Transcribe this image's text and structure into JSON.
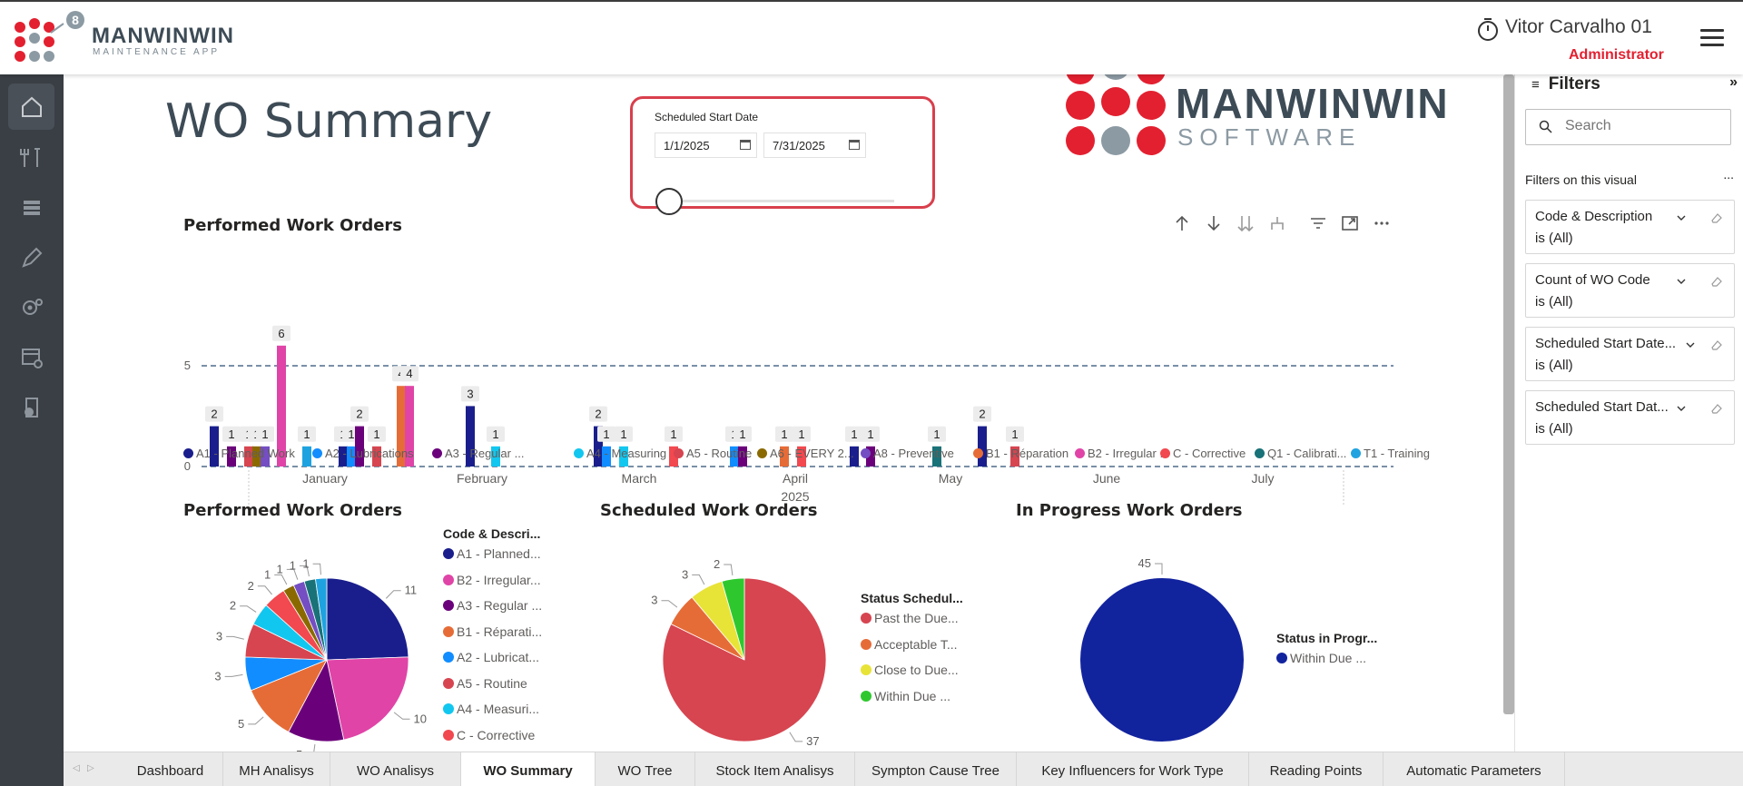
{
  "header": {
    "brand_name": "MANWINWIN",
    "brand_sub": "MAINTENANCE APP",
    "logo_badge": "8",
    "user_name": "Vitor Carvalho 01",
    "user_role": "Administrator"
  },
  "nav": {
    "items": [
      "home-icon",
      "tools-icon",
      "list-icon",
      "pen-icon",
      "settings-icon",
      "config-window-icon",
      "report-icon"
    ]
  },
  "page": {
    "title": "WO Summary"
  },
  "date_filter": {
    "label": "Scheduled Start Date",
    "start": "1/1/2025",
    "end": "7/31/2025"
  },
  "software_logo": {
    "name": "MANWINWIN",
    "sub": "SOFTWARE"
  },
  "bar_visual": {
    "title": "Performed Work Orders",
    "toolbar": [
      "sort-up-icon",
      "sort-down-icon",
      "expand-all-icon",
      "drill-icon",
      "filter-icon",
      "focus-icon",
      "more-icon"
    ]
  },
  "chart_data": [
    {
      "type": "bar",
      "title": "Performed Work Orders",
      "x_axis_title": "2025",
      "categories": [
        "January",
        "February",
        "March",
        "April",
        "May",
        "June",
        "July"
      ],
      "ylim": [
        0,
        6
      ],
      "y_ticks": [
        0,
        5
      ],
      "gridlines": "dashed at 0 and 5",
      "legend_position": "bottom",
      "legend": [
        {
          "label": "A1 - Planned Work",
          "color": "#1a1e8c"
        },
        {
          "label": "A2 - Lubrications",
          "color": "#118dff"
        },
        {
          "label": "A3 - Regular ...",
          "color": "#6b007b"
        },
        {
          "label": "A4 - Measuring",
          "color": "#12c7ef"
        },
        {
          "label": "A5 - Routine",
          "color": "#d64550"
        },
        {
          "label": "A6 - EVERY 2...",
          "color": "#8a6a00"
        },
        {
          "label": "A8 - Preventive",
          "color": "#744ec2"
        },
        {
          "label": "B1 - Réparation",
          "color": "#e66c37"
        },
        {
          "label": "B2 - Irregular ...",
          "color": "#e044a7"
        },
        {
          "label": "C - Corrective",
          "color": "#f2484f"
        },
        {
          "label": "Q1 - Calibrati...",
          "color": "#197278"
        },
        {
          "label": "T1 - Training",
          "color": "#1fa3e0"
        }
      ],
      "bars": [
        {
          "x": 236,
          "value": 2,
          "color": "#1a1e8c"
        },
        {
          "x": 255,
          "value": 1,
          "color": "#6b007b"
        },
        {
          "x": 274,
          "value": 1,
          "color": "#d64550"
        },
        {
          "x": 283,
          "value": 1,
          "color": "#8a6a00"
        },
        {
          "x": 292,
          "value": 1,
          "color": "#744ec2"
        },
        {
          "x": 310,
          "value": 6,
          "color": "#e044a7"
        },
        {
          "x": 338,
          "value": 1,
          "color": "#1fa3e0"
        },
        {
          "x": 378,
          "value": 1,
          "color": "#1a1e8c"
        },
        {
          "x": 387,
          "value": 1,
          "color": "#118dff"
        },
        {
          "x": 396,
          "value": 2,
          "color": "#6b007b"
        },
        {
          "x": 415,
          "value": 1,
          "color": "#d64550"
        },
        {
          "x": 442,
          "value": 4,
          "color": "#e66c37"
        },
        {
          "x": 451,
          "value": 4,
          "color": "#e044a7"
        },
        {
          "x": 518,
          "value": 3,
          "color": "#1a1e8c"
        },
        {
          "x": 546,
          "value": 1,
          "color": "#12c7ef"
        },
        {
          "x": 659,
          "value": 2,
          "color": "#1a1e8c"
        },
        {
          "x": 668,
          "value": 1,
          "color": "#118dff"
        },
        {
          "x": 687,
          "value": 1,
          "color": "#12c7ef"
        },
        {
          "x": 742,
          "value": 1,
          "color": "#f2484f"
        },
        {
          "x": 809,
          "value": 1,
          "color": "#118dff"
        },
        {
          "x": 818,
          "value": 1,
          "color": "#6b007b"
        },
        {
          "x": 864,
          "value": 1,
          "color": "#e66c37"
        },
        {
          "x": 883,
          "value": 1,
          "color": "#f2484f"
        },
        {
          "x": 941,
          "value": 1,
          "color": "#1a1e8c"
        },
        {
          "x": 959,
          "value": 1,
          "color": "#6b007b"
        },
        {
          "x": 1032,
          "value": 1,
          "color": "#197278"
        },
        {
          "x": 1082,
          "value": 2,
          "color": "#1a1e8c"
        },
        {
          "x": 1118,
          "value": 1,
          "color": "#d64550"
        }
      ]
    },
    {
      "type": "pie",
      "title": "Performed Work Orders",
      "legend_title": "Code & Descri...",
      "legend": [
        {
          "label": "A1 - Planned...",
          "color": "#1a1e8c"
        },
        {
          "label": "B2 - Irregular...",
          "color": "#e044a7"
        },
        {
          "label": "A3 - Regular ...",
          "color": "#6b007b"
        },
        {
          "label": "B1 - Réparati...",
          "color": "#e66c37"
        },
        {
          "label": "A2 - Lubricat...",
          "color": "#118dff"
        },
        {
          "label": "A5 - Routine",
          "color": "#d64550"
        },
        {
          "label": "A4 - Measuri...",
          "color": "#12c7ef"
        },
        {
          "label": "C - Corrective",
          "color": "#f2484f"
        }
      ],
      "slices": [
        {
          "value": 11,
          "color": "#1a1e8c"
        },
        {
          "value": 10,
          "color": "#e044a7"
        },
        {
          "value": 5,
          "color": "#6b007b"
        },
        {
          "value": 5,
          "color": "#e66c37"
        },
        {
          "value": 3,
          "color": "#118dff"
        },
        {
          "value": 3,
          "color": "#d64550"
        },
        {
          "value": 2,
          "color": "#12c7ef"
        },
        {
          "value": 2,
          "color": "#f2484f"
        },
        {
          "value": 1,
          "color": "#8a6a00"
        },
        {
          "value": 1,
          "color": "#744ec2"
        },
        {
          "value": 1,
          "color": "#197278"
        },
        {
          "value": 1,
          "color": "#1fa3e0"
        }
      ]
    },
    {
      "type": "pie",
      "title": "Scheduled Work Orders",
      "legend_title": "Status Schedul...",
      "legend": [
        {
          "label": "Past the Due...",
          "color": "#d64550"
        },
        {
          "label": "Acceptable T...",
          "color": "#e66c37"
        },
        {
          "label": "Close to Due...",
          "color": "#e8e337"
        },
        {
          "label": "Within Due ...",
          "color": "#2ec82e"
        }
      ],
      "slices": [
        {
          "value": 37,
          "color": "#d64550"
        },
        {
          "value": 3,
          "color": "#e66c37"
        },
        {
          "value": 3,
          "color": "#e8e337"
        },
        {
          "value": 2,
          "color": "#2ec82e"
        }
      ]
    },
    {
      "type": "pie",
      "title": "In Progress Work Orders",
      "legend_title": "Status in Progr...",
      "legend": [
        {
          "label": "Within Due ...",
          "color": "#12239e"
        }
      ],
      "slices": [
        {
          "value": 45,
          "color": "#12239e"
        }
      ]
    }
  ],
  "filters": {
    "title": "Filters",
    "search_placeholder": "Search",
    "section": "Filters on this visual",
    "more": "...",
    "cards": [
      {
        "name": "Code & Description",
        "value": "is (All)"
      },
      {
        "name": "Count of WO Code",
        "value": "is (All)"
      },
      {
        "name": "Scheduled Start Date...",
        "value": "is (All)"
      },
      {
        "name": "Scheduled Start Dat...",
        "value": "is (All)"
      }
    ]
  },
  "tabs": [
    {
      "label": "Dashboard"
    },
    {
      "label": "MH Analisys"
    },
    {
      "label": "WO Analisys"
    },
    {
      "label": "WO Summary",
      "active": true
    },
    {
      "label": "WO Tree"
    },
    {
      "label": "Stock Item Analisys"
    },
    {
      "label": "Sympton Cause Tree"
    },
    {
      "label": "Key Influencers for Work Type"
    },
    {
      "label": "Reading Points"
    },
    {
      "label": "Automatic Parameters"
    }
  ]
}
